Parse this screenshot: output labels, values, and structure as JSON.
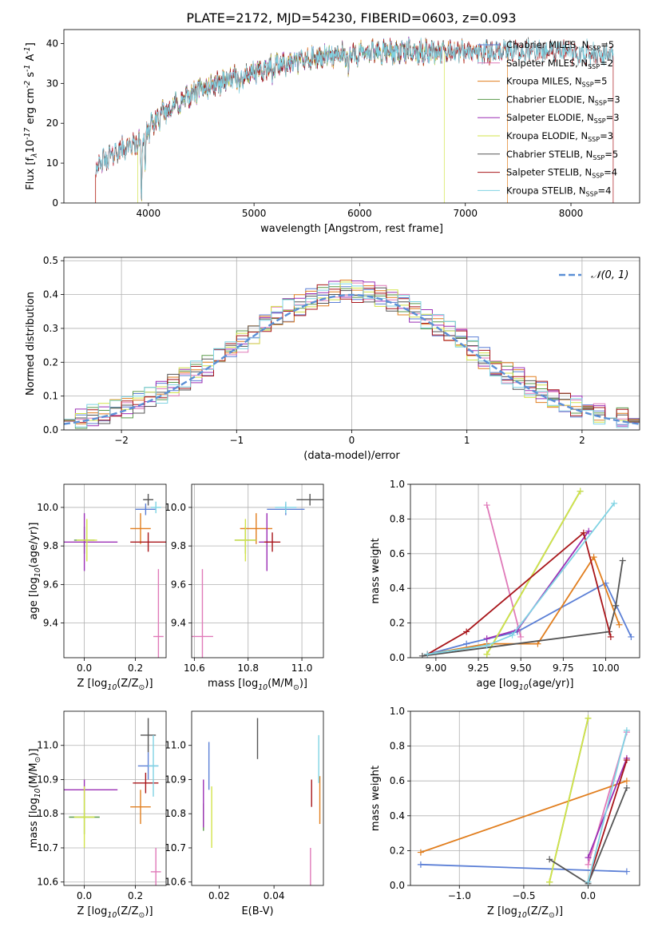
{
  "figure_title": "PLATE=2172, MJD=54230, FIBERID=0603, z=0.093",
  "colors": {
    "Chabrier MILES": "#5b7fd6",
    "Salpeter MILES": "#e07ab9",
    "Kroupa MILES": "#e17e1e",
    "Chabrier ELODIE": "#5a9a4a",
    "Salpeter ELODIE": "#9b2fb5",
    "Kroupa ELODIE": "#d2e34a",
    "Chabrier STELIB": "#555555",
    "Salpeter STELIB": "#a8151a",
    "Kroupa STELIB": "#7fd3e3",
    "gauss": "#5b8fd6"
  },
  "chart_data": [
    {
      "id": "spectrum",
      "type": "line",
      "xlabel": "wavelength [Angstrom, rest frame]",
      "ylabel": "Flux [f$_\\lambda$10$^{-17}$ erg cm$^{-2}$ s$^{-1}$ A$^{-1}$]",
      "xlim": [
        3200,
        8650
      ],
      "ylim": [
        0,
        43.5
      ],
      "xticks": [
        4000,
        5000,
        6000,
        7000,
        8000
      ],
      "yticks": [
        0,
        10,
        20,
        30,
        40
      ],
      "grid": false,
      "legend_loc": "top-right",
      "continuum_x": [
        3500,
        3700,
        3900,
        4000,
        4100,
        4300,
        4500,
        4700,
        5000,
        5200,
        5500,
        5800,
        6000,
        6300,
        6600,
        7000,
        7400,
        7800,
        8200,
        8400
      ],
      "continuum_y": [
        9,
        13,
        15,
        18,
        22,
        25.5,
        28.5,
        30.5,
        32.5,
        34.5,
        36,
        37,
        37.5,
        38,
        38,
        38,
        38,
        38,
        37.5,
        37
      ],
      "spectra": [
        {
          "model": "Chabrier MILES",
          "nssp": "5",
          "range": [
            3500,
            7400
          ]
        },
        {
          "model": "Salpeter MILES",
          "nssp": "2",
          "range": [
            3500,
            7400
          ]
        },
        {
          "model": "Kroupa MILES",
          "nssp": "5",
          "range": [
            3500,
            7400
          ]
        },
        {
          "model": "Chabrier ELODIE",
          "nssp": "3",
          "range": [
            3900,
            6800
          ]
        },
        {
          "model": "Salpeter ELODIE",
          "nssp": "3",
          "range": [
            3900,
            6800
          ]
        },
        {
          "model": "Kroupa ELODIE",
          "nssp": "3",
          "range": [
            3900,
            6800
          ]
        },
        {
          "model": "Chabrier STELIB",
          "nssp": "5",
          "range": [
            3500,
            8400
          ]
        },
        {
          "model": "Salpeter STELIB",
          "nssp": "4",
          "range": [
            3500,
            8400
          ]
        },
        {
          "model": "Kroupa STELIB",
          "nssp": "4",
          "range": [
            3500,
            8400
          ]
        }
      ],
      "legend_entries": [
        {
          "model": "Chabrier MILES",
          "nssp": "5"
        },
        {
          "model": "Salpeter MILES",
          "nssp": "2"
        },
        {
          "model": "Kroupa MILES",
          "nssp": "5"
        },
        {
          "model": "Chabrier ELODIE",
          "nssp": "3"
        },
        {
          "model": "Salpeter ELODIE",
          "nssp": "3"
        },
        {
          "model": "Kroupa ELODIE",
          "nssp": "3"
        },
        {
          "model": "Chabrier STELIB",
          "nssp": "5"
        },
        {
          "model": "Salpeter STELIB",
          "nssp": "4"
        },
        {
          "model": "Kroupa STELIB",
          "nssp": "4"
        }
      ]
    },
    {
      "id": "residuals",
      "type": "line",
      "xlabel": "(data-model)/error",
      "ylabel": "Normed distribution",
      "xlim": [
        -2.5,
        2.5
      ],
      "ylim": [
        0,
        0.51
      ],
      "xticks": [
        -2,
        -1,
        0,
        1,
        2
      ],
      "yticks": [
        0.0,
        0.1,
        0.2,
        0.3,
        0.4,
        0.5
      ],
      "grid": true,
      "legend_loc": "top-right",
      "legend_label": "𝒩(0, 1)",
      "bin_width": 0.1,
      "series": [
        {
          "model": "Chabrier MILES"
        },
        {
          "model": "Salpeter MILES"
        },
        {
          "model": "Kroupa MILES"
        },
        {
          "model": "Chabrier ELODIE"
        },
        {
          "model": "Salpeter ELODIE"
        },
        {
          "model": "Kroupa ELODIE"
        },
        {
          "model": "Chabrier STELIB"
        },
        {
          "model": "Salpeter STELIB"
        },
        {
          "model": "Kroupa STELIB"
        }
      ]
    },
    {
      "id": "age_vs_Z",
      "type": "scatter",
      "xlabel": "Z [log$_{10}$(Z/Z$_\\odot$)]",
      "ylabel": "age  [log$_{10}$(age/yr)]",
      "xlim": [
        -0.08,
        0.32
      ],
      "ylim": [
        9.22,
        10.12
      ],
      "xticks": [
        0.0,
        0.2
      ],
      "yticks": [
        9.4,
        9.6,
        9.8,
        10.0
      ],
      "grid": true,
      "points": [
        {
          "model": "Chabrier MILES",
          "x": 0.24,
          "y": 9.99,
          "xerr": 0.04,
          "yerr": 0.03
        },
        {
          "model": "Salpeter MILES",
          "x": 0.29,
          "y": 9.33,
          "xerr": 0.02,
          "yerr": 0.35
        },
        {
          "model": "Kroupa MILES",
          "x": 0.22,
          "y": 9.89,
          "xerr": 0.04,
          "yerr": 0.08
        },
        {
          "model": "Chabrier ELODIE",
          "x": 0.0,
          "y": 9.83,
          "xerr": 0.04,
          "yerr": 0.07
        },
        {
          "model": "Salpeter ELODIE",
          "x": 0.0,
          "y": 9.82,
          "xerr": 0.13,
          "yerr": 0.15
        },
        {
          "model": "Kroupa ELODIE",
          "x": 0.01,
          "y": 9.83,
          "xerr": 0.04,
          "yerr": 0.11
        },
        {
          "model": "Chabrier STELIB",
          "x": 0.25,
          "y": 10.04,
          "xerr": 0.02,
          "yerr": 0.03
        },
        {
          "model": "Salpeter STELIB",
          "x": 0.25,
          "y": 9.82,
          "xerr": 0.07,
          "yerr": 0.05
        },
        {
          "model": "Kroupa STELIB",
          "x": 0.28,
          "y": 10.0,
          "xerr": 0.02,
          "yerr": 0.03
        }
      ]
    },
    {
      "id": "age_vs_mass",
      "type": "scatter",
      "xlabel": "mass [log$_{10}$(M/M$_\\odot$)]",
      "ylabel": "",
      "xlim": [
        10.59,
        11.08
      ],
      "ylim": [
        9.22,
        10.12
      ],
      "xticks": [
        10.6,
        10.8,
        11.0
      ],
      "yticks": [
        9.4,
        9.6,
        9.8,
        10.0
      ],
      "grid": true,
      "points": [
        {
          "model": "Chabrier MILES",
          "x": 10.94,
          "y": 9.99,
          "xerr": 0.07,
          "yerr": 0.03
        },
        {
          "model": "Salpeter MILES",
          "x": 10.63,
          "y": 9.33,
          "xerr": 0.04,
          "yerr": 0.35
        },
        {
          "model": "Kroupa MILES",
          "x": 10.83,
          "y": 9.89,
          "xerr": 0.06,
          "yerr": 0.08
        },
        {
          "model": "Chabrier ELODIE",
          "x": 10.79,
          "y": 9.83,
          "xerr": 0.04,
          "yerr": 0.07
        },
        {
          "model": "Salpeter ELODIE",
          "x": 10.87,
          "y": 9.82,
          "xerr": 0.03,
          "yerr": 0.15
        },
        {
          "model": "Kroupa ELODIE",
          "x": 10.79,
          "y": 9.83,
          "xerr": 0.04,
          "yerr": 0.11
        },
        {
          "model": "Chabrier STELIB",
          "x": 11.03,
          "y": 10.04,
          "xerr": 0.05,
          "yerr": 0.03
        },
        {
          "model": "Salpeter STELIB",
          "x": 10.89,
          "y": 9.82,
          "xerr": 0.03,
          "yerr": 0.05
        },
        {
          "model": "Kroupa STELIB",
          "x": 10.94,
          "y": 10.0,
          "xerr": 0.04,
          "yerr": 0.03
        }
      ]
    },
    {
      "id": "weight_vs_age",
      "type": "line",
      "xlabel": "age  [log$_{10}$(age/yr)]",
      "ylabel": "mass weight",
      "xlim": [
        8.85,
        10.2
      ],
      "ylim": [
        0,
        1.0
      ],
      "xticks": [
        9.0,
        9.25,
        9.5,
        9.75,
        10.0
      ],
      "yticks": [
        0.0,
        0.2,
        0.4,
        0.6,
        0.8,
        1.0
      ],
      "grid": true,
      "series": [
        {
          "model": "Chabrier MILES",
          "x": [
            8.95,
            9.18,
            9.48,
            10.0,
            10.15
          ],
          "y": [
            0.02,
            0.08,
            0.15,
            0.43,
            0.12
          ]
        },
        {
          "model": "Salpeter MILES",
          "x": [
            9.3,
            9.5
          ],
          "y": [
            0.88,
            0.12
          ]
        },
        {
          "model": "Kroupa MILES",
          "x": [
            8.95,
            9.3,
            9.6,
            9.93,
            10.08
          ],
          "y": [
            0.02,
            0.08,
            0.08,
            0.58,
            0.19
          ]
        },
        {
          "model": "Chabrier ELODIE",
          "x": [
            9.3,
            9.85
          ],
          "y": [
            0.02,
            0.96
          ]
        },
        {
          "model": "Salpeter ELODIE",
          "x": [
            9.3,
            9.48,
            9.9
          ],
          "y": [
            0.11,
            0.16,
            0.73
          ]
        },
        {
          "model": "Kroupa ELODIE",
          "x": [
            9.3,
            9.85
          ],
          "y": [
            0.02,
            0.96
          ]
        },
        {
          "model": "Chabrier STELIB",
          "x": [
            8.92,
            10.02,
            10.06,
            10.1
          ],
          "y": [
            0.01,
            0.15,
            0.3,
            0.56
          ]
        },
        {
          "model": "Salpeter STELIB",
          "x": [
            8.95,
            9.18,
            9.87,
            10.03
          ],
          "y": [
            0.02,
            0.15,
            0.72,
            0.12
          ]
        },
        {
          "model": "Kroupa STELIB",
          "x": [
            8.95,
            9.3,
            9.45,
            10.05
          ],
          "y": [
            0.02,
            0.07,
            0.13,
            0.89
          ]
        }
      ]
    },
    {
      "id": "mass_vs_Z",
      "type": "scatter",
      "xlabel": "Z [log$_{10}$(Z/Z$_\\odot$)]",
      "ylabel": "mass [log$_{10}$(M/M$_\\odot$)]",
      "xlim": [
        -0.08,
        0.32
      ],
      "ylim": [
        10.59,
        11.1
      ],
      "xticks": [
        0.0,
        0.2
      ],
      "yticks": [
        10.6,
        10.7,
        10.8,
        10.9,
        11.0
      ],
      "grid": true,
      "points": [
        {
          "model": "Chabrier MILES",
          "x": 0.25,
          "y": 10.94,
          "xerr": 0.04,
          "yerr": 0.04
        },
        {
          "model": "Salpeter MILES",
          "x": 0.28,
          "y": 10.63,
          "xerr": 0.02,
          "yerr": 0.07
        },
        {
          "model": "Kroupa MILES",
          "x": 0.22,
          "y": 10.82,
          "xerr": 0.04,
          "yerr": 0.05
        },
        {
          "model": "Chabrier ELODIE",
          "x": 0.0,
          "y": 10.79,
          "xerr": 0.06,
          "yerr": 0.05
        },
        {
          "model": "Salpeter ELODIE",
          "x": 0.0,
          "y": 10.87,
          "xerr": 0.13,
          "yerr": 0.03
        },
        {
          "model": "Kroupa ELODIE",
          "x": 0.0,
          "y": 10.79,
          "xerr": 0.04,
          "yerr": 0.09
        },
        {
          "model": "Chabrier STELIB",
          "x": 0.25,
          "y": 11.03,
          "xerr": 0.03,
          "yerr": 0.05
        },
        {
          "model": "Salpeter STELIB",
          "x": 0.24,
          "y": 10.89,
          "xerr": 0.05,
          "yerr": 0.03
        },
        {
          "model": "Kroupa STELIB",
          "x": 0.27,
          "y": 10.94,
          "xerr": 0.02,
          "yerr": 0.09
        }
      ]
    },
    {
      "id": "mass_vs_EBV",
      "type": "scatter",
      "xlabel": "E(B-V)",
      "ylabel": "",
      "xlim": [
        0.01,
        0.058
      ],
      "ylim": [
        10.59,
        11.1
      ],
      "xticks": [
        0.02,
        0.04
      ],
      "yticks": [
        10.6,
        10.7,
        10.8,
        10.9,
        11.0
      ],
      "grid": false,
      "points": [
        {
          "model": "Chabrier MILES",
          "x": 0.0163,
          "y": 10.94,
          "yerr": 0.07
        },
        {
          "model": "Salpeter MILES",
          "x": 0.0533,
          "y": 10.63,
          "yerr": 0.07
        },
        {
          "model": "Kroupa MILES",
          "x": 0.0567,
          "y": 10.84,
          "yerr": 0.07
        },
        {
          "model": "Chabrier ELODIE",
          "x": 0.0143,
          "y": 10.79,
          "yerr": 0.04
        },
        {
          "model": "Salpeter ELODIE",
          "x": 0.0143,
          "y": 10.83,
          "yerr": 0.07
        },
        {
          "model": "Kroupa ELODIE",
          "x": 0.0173,
          "y": 10.79,
          "yerr": 0.09
        },
        {
          "model": "Chabrier STELIB",
          "x": 0.034,
          "y": 11.02,
          "yerr": 0.06
        },
        {
          "model": "Salpeter STELIB",
          "x": 0.0537,
          "y": 10.86,
          "yerr": 0.04
        },
        {
          "model": "Kroupa STELIB",
          "x": 0.0563,
          "y": 10.96,
          "yerr": 0.07
        }
      ]
    },
    {
      "id": "weight_vs_Z",
      "type": "line",
      "xlabel": "Z [log$_{10}$(Z/Z$_\\odot$)]",
      "ylabel": "mass weight",
      "xlim": [
        -1.38,
        0.4
      ],
      "ylim": [
        0,
        1.0
      ],
      "xticks": [
        -1.0,
        -0.5,
        0.0
      ],
      "yticks": [
        0.0,
        0.2,
        0.4,
        0.6,
        0.8,
        1.0
      ],
      "grid": true,
      "series": [
        {
          "model": "Chabrier MILES",
          "x": [
            -1.3,
            0.3
          ],
          "y": [
            0.12,
            0.08
          ]
        },
        {
          "model": "Salpeter MILES",
          "x": [
            0.0,
            0.3
          ],
          "y": [
            0.12,
            0.88
          ]
        },
        {
          "model": "Kroupa MILES",
          "x": [
            -1.3,
            0.3
          ],
          "y": [
            0.19,
            0.6
          ]
        },
        {
          "model": "Chabrier ELODIE",
          "x": [
            -0.3,
            0.0,
            -0.3
          ],
          "y": [
            0.02,
            0.96,
            0.02
          ]
        },
        {
          "model": "Salpeter ELODIE",
          "x": [
            0.0,
            0.3
          ],
          "y": [
            0.16,
            0.73
          ]
        },
        {
          "model": "Kroupa ELODIE",
          "x": [
            -0.3,
            0.0,
            -0.3
          ],
          "y": [
            0.02,
            0.96,
            0.02
          ]
        },
        {
          "model": "Chabrier STELIB",
          "x": [
            -0.3,
            0.0,
            0.3
          ],
          "y": [
            0.15,
            0.01,
            0.56
          ]
        },
        {
          "model": "Salpeter STELIB",
          "x": [
            0.0,
            0.3
          ],
          "y": [
            0.02,
            0.72
          ]
        },
        {
          "model": "Kroupa STELIB",
          "x": [
            0.0,
            0.3
          ],
          "y": [
            0.02,
            0.89
          ]
        }
      ]
    }
  ]
}
